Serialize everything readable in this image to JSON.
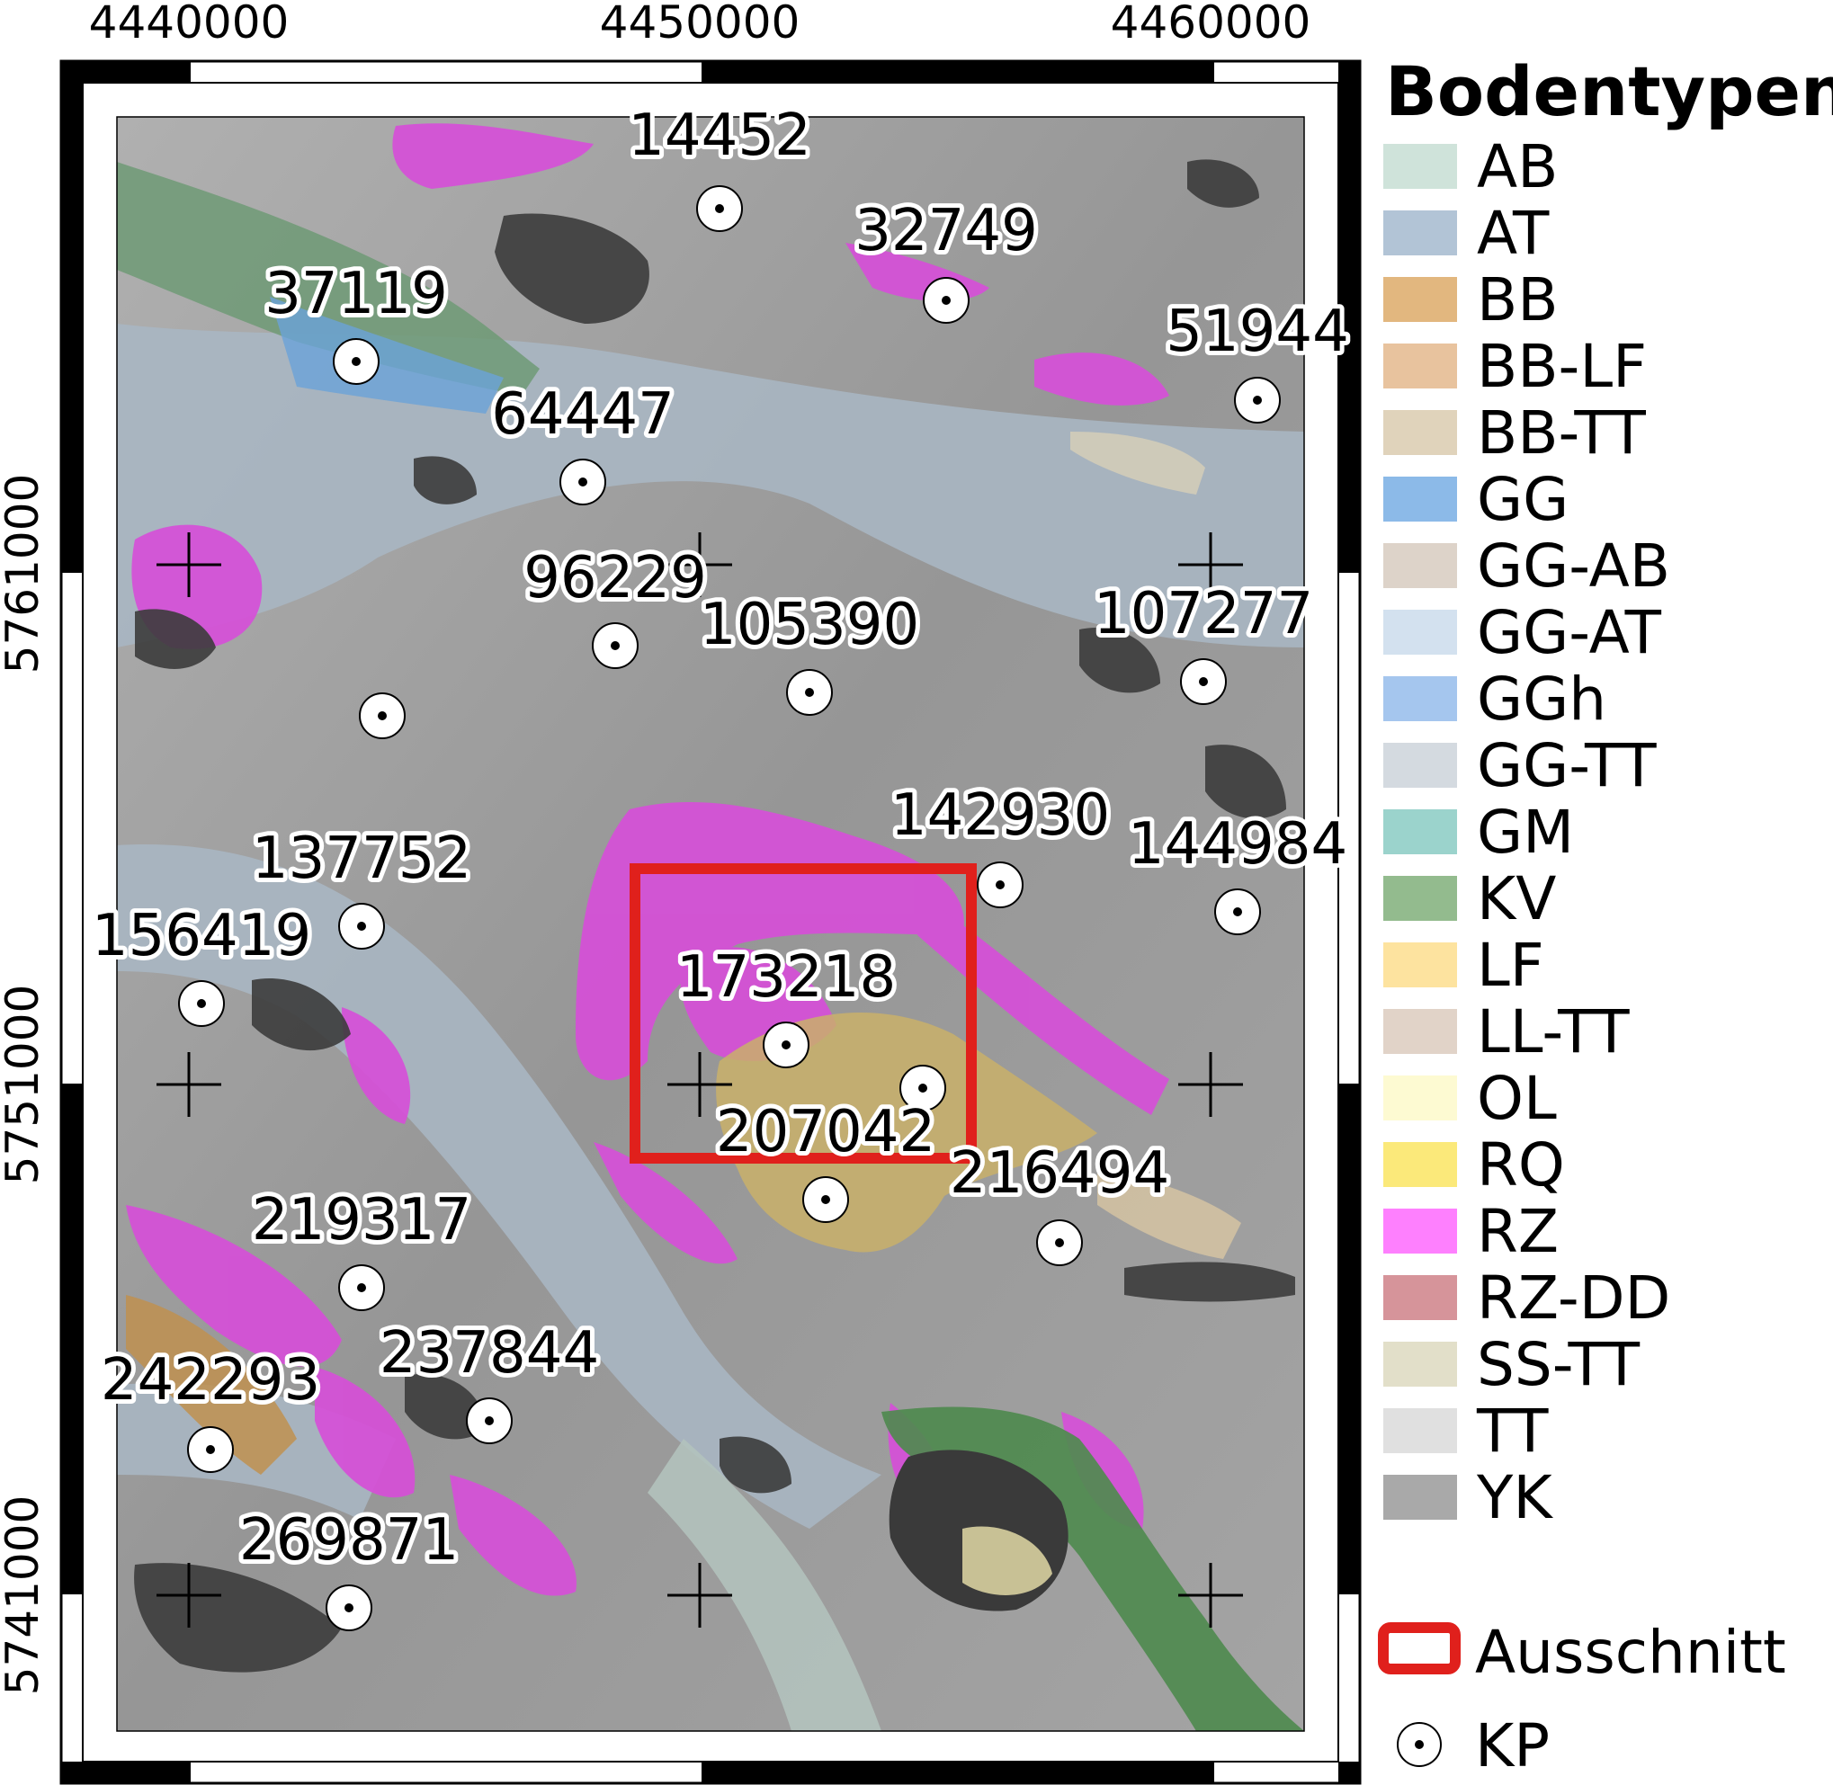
{
  "map": {
    "x_ticks": [
      "4440000",
      "4450000",
      "4460000"
    ],
    "y_ticks": [
      "5761000",
      "5751000",
      "5741000"
    ]
  },
  "colors": {
    "grey_base": "#9a9a9a",
    "valley_blue_grey": "#a9b6c2",
    "rz_magenta": "#d64fd8",
    "bb_tan": "#c9b06a",
    "kv_green": "#4f8a4f",
    "settlement": "#3c3c3c",
    "ausschnitt_red": "#e0201c"
  },
  "points": [
    {
      "label": "14452"
    },
    {
      "label": "32749"
    },
    {
      "label": "37119"
    },
    {
      "label": "51944"
    },
    {
      "label": "64447"
    },
    {
      "label": "96229"
    },
    {
      "label": "105390"
    },
    {
      "label": "107277"
    },
    {
      "label": ""
    },
    {
      "label": "142930"
    },
    {
      "label": "144984"
    },
    {
      "label": "137752"
    },
    {
      "label": "156419"
    },
    {
      "label": "173218"
    },
    {
      "label": ""
    },
    {
      "label": "207042"
    },
    {
      "label": "216494"
    },
    {
      "label": "219317"
    },
    {
      "label": "237844"
    },
    {
      "label": "242293"
    },
    {
      "label": "269871"
    }
  ],
  "legend": {
    "title": "Bodentypen",
    "items": [
      {
        "label": "AB",
        "color": "#cfe3da"
      },
      {
        "label": "AT",
        "color": "#b2c4d6"
      },
      {
        "label": "BB",
        "color": "#e2b77f"
      },
      {
        "label": "BB-LF",
        "color": "#e8c39e"
      },
      {
        "label": "BB-TT",
        "color": "#e0d3bb"
      },
      {
        "label": "GG",
        "color": "#8cbae8"
      },
      {
        "label": "GG-AB",
        "color": "#ddd3c9"
      },
      {
        "label": "GG-AT",
        "color": "#d3e1ef"
      },
      {
        "label": "GGh",
        "color": "#a5c6ee"
      },
      {
        "label": "GG-TT",
        "color": "#d4dae0"
      },
      {
        "label": "GM",
        "color": "#9bd3cc"
      },
      {
        "label": "KV",
        "color": "#93bb8e"
      },
      {
        "label": "LF",
        "color": "#fde39f"
      },
      {
        "label": "LL-TT",
        "color": "#e1d3c8"
      },
      {
        "label": "OL",
        "color": "#fdfad2"
      },
      {
        "label": "RQ",
        "color": "#fbe97a"
      },
      {
        "label": "RZ",
        "color": "#fe80fe"
      },
      {
        "label": "RZ-DD",
        "color": "#d6949a"
      },
      {
        "label": "SS-TT",
        "color": "#e2dfc9"
      },
      {
        "label": "TT",
        "color": "#e0e0e0"
      },
      {
        "label": "YK",
        "color": "#a9a9a9"
      }
    ],
    "ausschnitt_label": "Ausschnitt",
    "kp_label": "KP"
  }
}
